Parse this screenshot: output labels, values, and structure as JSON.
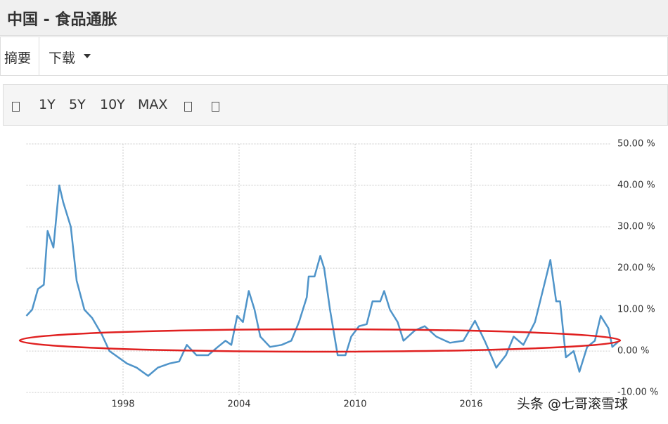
{
  "header": {
    "title": "中国 - 食品通胀"
  },
  "tabs": [
    "摘要",
    "下载"
  ],
  "toolbar": [
    "1Y",
    "5Y",
    "10Y",
    "MAX"
  ],
  "watermark": "头条 @七哥滚雪球",
  "chart_data": {
    "type": "line",
    "x": [
      1993.0,
      1993.3,
      1993.6,
      1993.9,
      1994.1,
      1994.4,
      1994.7,
      1994.9,
      1995.3,
      1995.6,
      1996.0,
      1996.4,
      1996.9,
      1997.3,
      1997.6,
      1998.2,
      1998.7,
      1999.3,
      1999.8,
      2000.4,
      2000.9,
      2001.3,
      2001.8,
      2002.4,
      2002.9,
      2003.3,
      2003.6,
      2003.9,
      2004.2,
      2004.5,
      2004.8,
      2005.1,
      2005.6,
      2006.2,
      2006.7,
      2007.1,
      2007.5,
      2007.6,
      2007.9,
      2008.2,
      2008.4,
      2008.7,
      2009.1,
      2009.5,
      2009.8,
      2010.2,
      2010.6,
      2010.9,
      2011.3,
      2011.5,
      2011.8,
      2012.2,
      2012.5,
      2013.1,
      2013.6,
      2014.2,
      2014.9,
      2015.6,
      2016.2,
      2016.7,
      2017.3,
      2017.8,
      2018.2,
      2018.7,
      2019.3,
      2019.7,
      2020.1,
      2020.4,
      2020.6,
      2020.9,
      2021.3,
      2021.6,
      2022.0,
      2022.4,
      2022.7,
      2023.1,
      2023.3,
      2023.6
    ],
    "series": [
      {
        "name": "食品通胀",
        "color": "#4f94c9",
        "values": [
          8.5,
          10,
          15,
          16,
          29,
          25,
          40,
          36,
          30,
          17,
          10,
          8,
          4,
          0,
          -1,
          -3,
          -4,
          -6,
          -4,
          -3,
          -2.5,
          1.5,
          -1,
          -1,
          1,
          2.5,
          1.5,
          8.5,
          7,
          14.5,
          10,
          3.5,
          1,
          1.5,
          2.5,
          7,
          13,
          18,
          18,
          23,
          20,
          10,
          -1,
          -1,
          3.5,
          6,
          6.5,
          12,
          12,
          14.5,
          10,
          7,
          2.5,
          5,
          6,
          3.5,
          2,
          2.5,
          7.3,
          2.5,
          -4,
          -1,
          3.5,
          1.5,
          7,
          14.5,
          22,
          12,
          12,
          -1.5,
          0,
          -5,
          1,
          2.5,
          8.5,
          5.5,
          1,
          2.2
        ]
      }
    ],
    "xlim": [
      1993,
      2023.6
    ],
    "xticks": [
      1998,
      2004,
      2010,
      2016
    ],
    "ylim": [
      -17.6,
      51.7
    ],
    "yticks": [
      {
        "value": 50,
        "label": "50.00 %"
      },
      {
        "value": 40,
        "label": "40.00 %"
      },
      {
        "value": 30,
        "label": "30.00 %"
      },
      {
        "value": 20,
        "label": "20.00 %"
      },
      {
        "value": 10,
        "label": "10.00 %"
      },
      {
        "value": 0,
        "label": "0.00 %"
      },
      {
        "value": -10,
        "label": "-10.00 %"
      }
    ],
    "grid": true
  }
}
